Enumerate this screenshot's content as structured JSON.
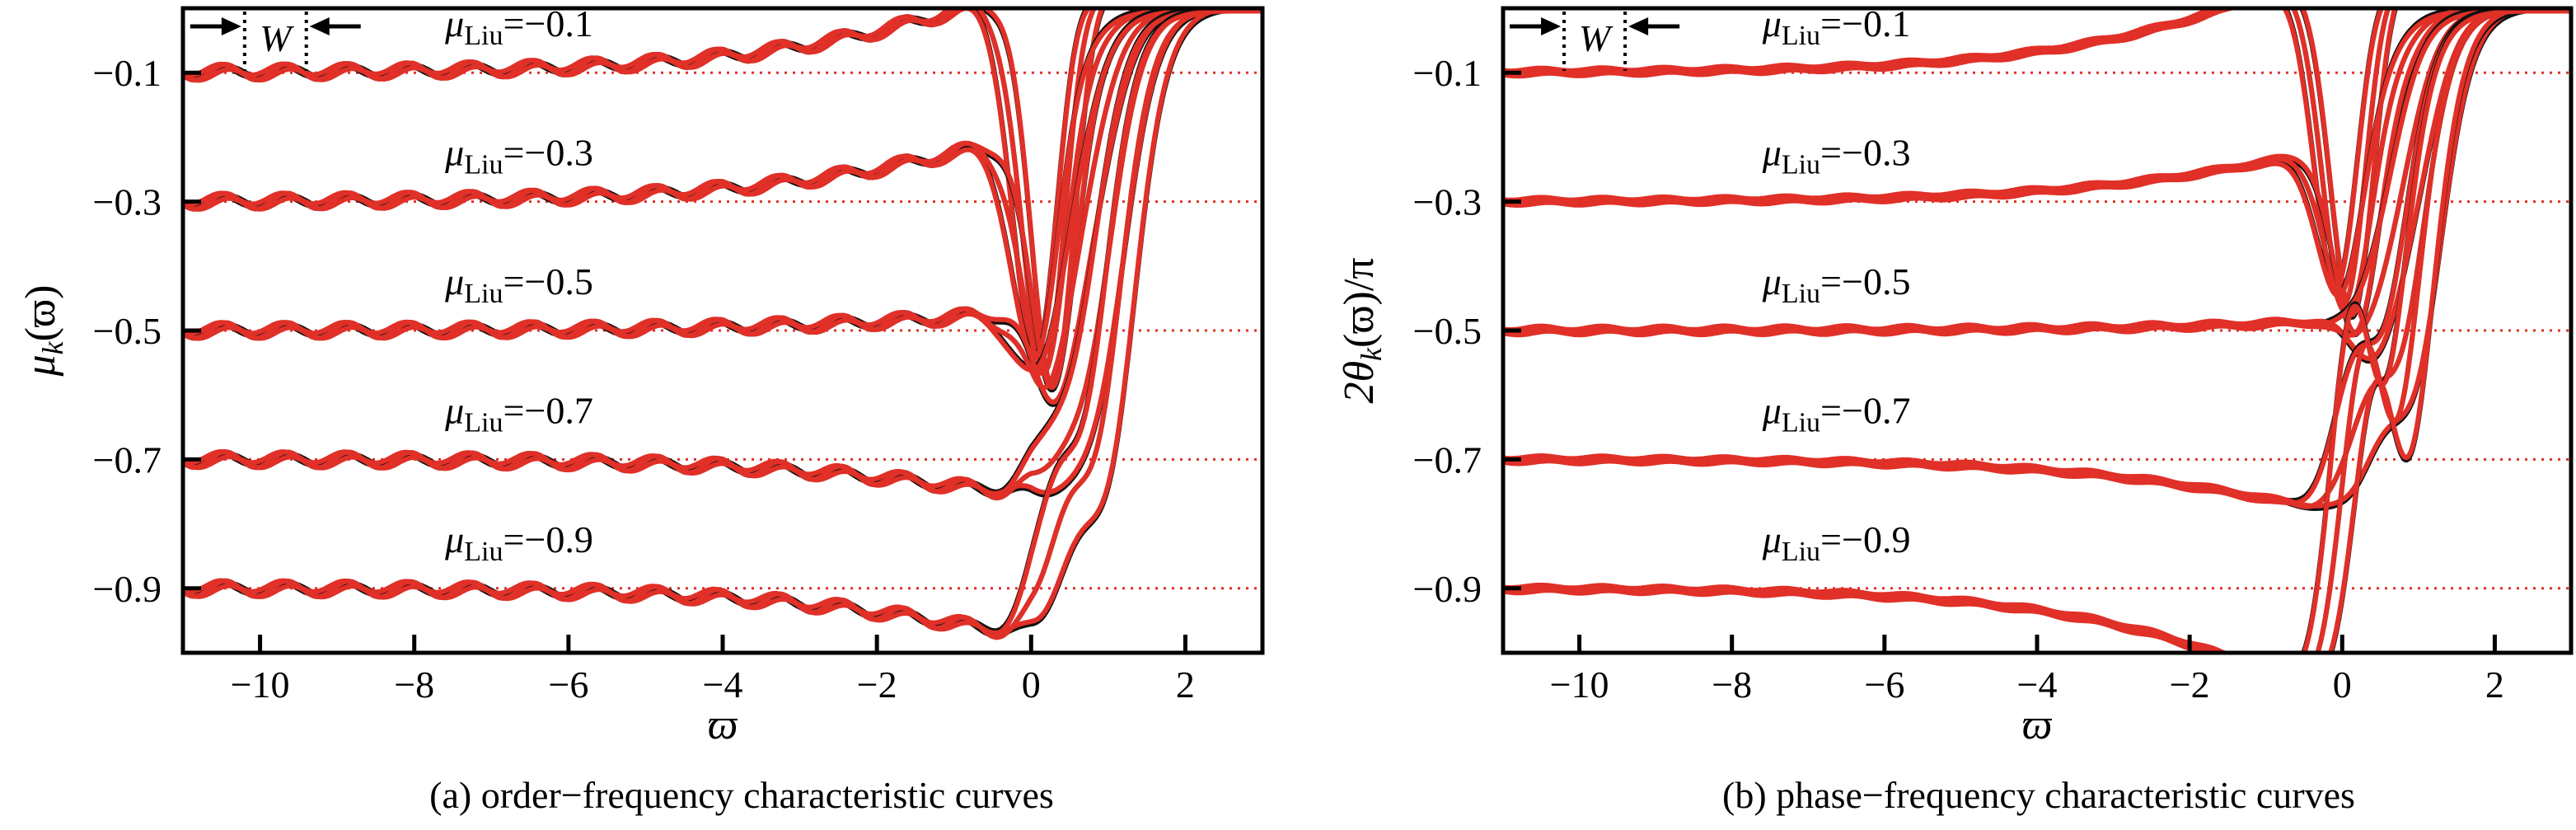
{
  "figure": {
    "chart_data": [
      {
        "type": "line",
        "panel": "a",
        "caption": "(a) order−frequency characteristic curves",
        "xlabel": "ϖ",
        "ylabel": {
          "base": "μ",
          "sub": "k",
          "arg": "(ϖ)"
        },
        "xlim": [
          -11,
          3
        ],
        "ylim": [
          -1.0,
          0.0
        ],
        "x_ticks": [
          -10,
          -8,
          -6,
          -4,
          -2,
          0,
          2
        ],
        "x_tick_labels": [
          "−10",
          "−8",
          "−6",
          "−4",
          "−2",
          "0",
          "2"
        ],
        "y_ticks": [
          -0.1,
          -0.3,
          -0.5,
          -0.7,
          -0.9
        ],
        "y_tick_labels": [
          "−0.1",
          "−0.3",
          "−0.5",
          "−0.7",
          "−0.9"
        ],
        "reference_lines": [
          -0.1,
          -0.3,
          -0.5,
          -0.7,
          -0.9
        ],
        "grid": false,
        "curve_colors": [
          "#111111",
          "#e03028"
        ],
        "reference_color": "#e03028",
        "series": [
          {
            "mu_liu": -0.1,
            "label_value": "−0.1",
            "dip_min": [
              -0.58,
              -0.6,
              -0.62
            ],
            "dip_x": [
              0.08,
              0.18,
              0.3
            ],
            "tail_drop": 0.28,
            "ripple": 0.012
          },
          {
            "mu_liu": -0.3,
            "label_value": "−0.3",
            "dip_min": [
              -0.58,
              -0.6,
              -0.62
            ],
            "dip_x": [
              0.08,
              0.18,
              0.3
            ],
            "tail_drop": 0.22,
            "ripple": 0.012
          },
          {
            "mu_liu": -0.5,
            "label_value": "−0.5",
            "dip_min": [
              -0.6,
              -0.62,
              -0.64
            ],
            "dip_x": [
              0.1,
              0.22,
              0.35
            ],
            "tail_drop": 0.06,
            "ripple": 0.012
          },
          {
            "mu_liu": -0.7,
            "label_value": "−0.7",
            "dip_min": [
              -0.69,
              -0.72,
              -0.76
            ],
            "dip_x": [
              0.25,
              0.4,
              0.55
            ],
            "tail_drop": -0.12,
            "ripple": 0.012
          },
          {
            "mu_liu": -0.9,
            "label_value": "−0.9",
            "dip_min": [
              -0.76,
              -0.8,
              -0.85
            ],
            "dip_x": [
              0.35,
              0.5,
              0.65
            ],
            "tail_drop": -0.16,
            "ripple": 0.012
          }
        ]
      },
      {
        "type": "line",
        "panel": "b",
        "caption": "(b) phase−frequency characteristic curves",
        "xlabel": "ϖ",
        "ylabel": {
          "base": "2θ",
          "sub": "k",
          "arg": "(ϖ)/π"
        },
        "xlim": [
          -11,
          3
        ],
        "ylim": [
          -1.0,
          0.0
        ],
        "x_ticks": [
          -10,
          -8,
          -6,
          -4,
          -2,
          0,
          2
        ],
        "x_tick_labels": [
          "−10",
          "−8",
          "−6",
          "−4",
          "−2",
          "0",
          "2"
        ],
        "y_ticks": [
          -0.1,
          -0.3,
          -0.5,
          -0.7,
          -0.9
        ],
        "y_tick_labels": [
          "−0.1",
          "−0.3",
          "−0.5",
          "−0.7",
          "−0.9"
        ],
        "reference_lines": [
          -0.1,
          -0.3,
          -0.5,
          -0.7,
          -0.9
        ],
        "grid": false,
        "curve_colors": [
          "#111111",
          "#e03028"
        ],
        "reference_color": "#e03028",
        "series": [
          {
            "mu_liu": -0.1,
            "label_value": "−0.1",
            "dip_min": [
              -0.45,
              -0.48,
              -0.5
            ],
            "dip_x": [
              -0.05,
              0.05,
              0.15
            ],
            "tail_drop": 0.36,
            "ripple": 0.003
          },
          {
            "mu_liu": -0.3,
            "label_value": "−0.3",
            "dip_min": [
              -0.47,
              -0.5,
              -0.53
            ],
            "dip_x": [
              0.0,
              0.1,
              0.2
            ],
            "tail_drop": 0.18,
            "ripple": 0.003
          },
          {
            "mu_liu": -0.5,
            "label_value": "−0.5",
            "dip_min": [
              -0.5,
              -0.53,
              -0.57
            ],
            "dip_x": [
              0.1,
              0.25,
              0.45
            ],
            "tail_drop": 0.03,
            "ripple": 0.004
          },
          {
            "mu_liu": -0.7,
            "label_value": "−0.7",
            "dip_min": [
              -0.57,
              -0.62,
              -0.68
            ],
            "dip_x": [
              0.2,
              0.4,
              0.6
            ],
            "tail_drop": -0.18,
            "ripple": 0.003
          },
          {
            "mu_liu": -0.9,
            "label_value": "−0.9",
            "dip_min": [
              -0.5,
              -0.55,
              -0.6
            ],
            "dip_x": [
              0.15,
              0.3,
              0.45
            ],
            "tail_drop": -0.38,
            "ripple": 0.003
          }
        ]
      }
    ],
    "series_label_prefix": {
      "base": "μ",
      "sub": "Liu",
      "equals": "="
    },
    "width_marker": {
      "label": "W",
      "x_from": -10.2,
      "x_to": -9.4
    }
  }
}
